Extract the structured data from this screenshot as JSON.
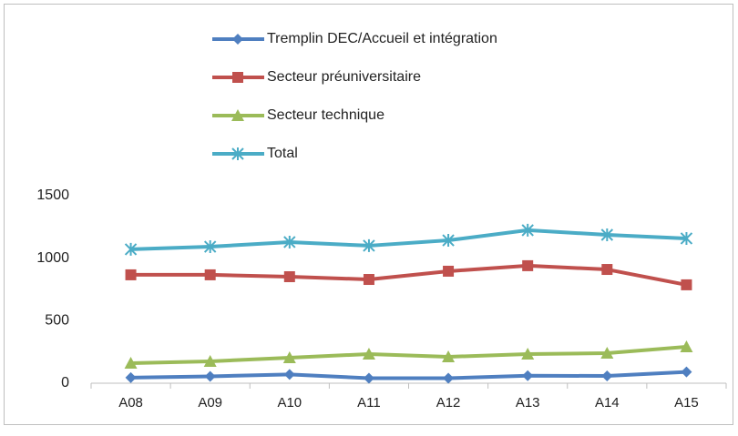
{
  "chart_data": {
    "type": "line",
    "categories": [
      "A08",
      "A09",
      "A10",
      "A11",
      "A12",
      "A13",
      "A14",
      "A15"
    ],
    "series": [
      {
        "name": "Tremplin DEC/Accueil et intégration",
        "color": "#4f7fc0",
        "marker": "diamond",
        "values": [
          45,
          55,
          70,
          40,
          40,
          60,
          58,
          90
        ]
      },
      {
        "name": "Secteur préuniversitaire",
        "color": "#c0504d",
        "marker": "square",
        "values": [
          867,
          867,
          852,
          830,
          896,
          940,
          910,
          787
        ]
      },
      {
        "name": "Secteur technique",
        "color": "#9bbb59",
        "marker": "triangle",
        "values": [
          160,
          175,
          204,
          233,
          211,
          233,
          240,
          291
        ]
      },
      {
        "name": "Total",
        "color": "#4bacc6",
        "marker": "star",
        "values": [
          1071,
          1092,
          1129,
          1100,
          1143,
          1224,
          1187,
          1158
        ]
      }
    ],
    "ylim": [
      0,
      1500
    ],
    "yticks": [
      0,
      500,
      1000,
      1500
    ],
    "grid": false,
    "legend": "top"
  }
}
